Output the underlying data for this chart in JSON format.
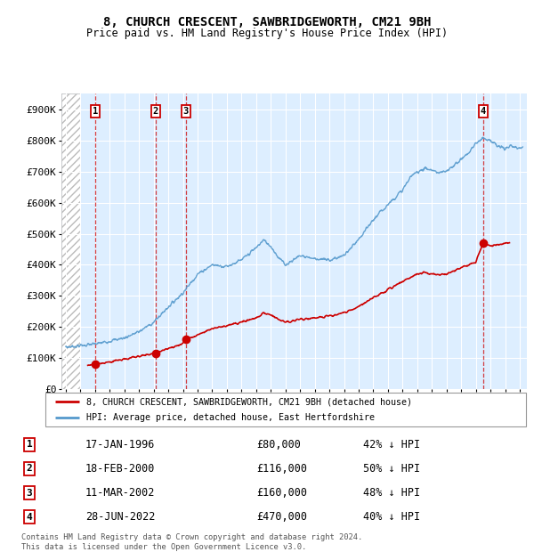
{
  "title": "8, CHURCH CRESCENT, SAWBRIDGEWORTH, CM21 9BH",
  "subtitle": "Price paid vs. HM Land Registry's House Price Index (HPI)",
  "transactions": [
    {
      "num": 1,
      "date_str": "17-JAN-1996",
      "year": 1996.04,
      "price": 80000,
      "label": "42% ↓ HPI"
    },
    {
      "num": 2,
      "date_str": "18-FEB-2000",
      "year": 2000.12,
      "price": 116000,
      "label": "50% ↓ HPI"
    },
    {
      "num": 3,
      "date_str": "11-MAR-2002",
      "year": 2002.19,
      "price": 160000,
      "label": "48% ↓ HPI"
    },
    {
      "num": 4,
      "date_str": "28-JUN-2022",
      "year": 2022.49,
      "price": 470000,
      "label": "40% ↓ HPI"
    }
  ],
  "hpi_color": "#5599cc",
  "price_color": "#cc0000",
  "vline_color": "#cc0000",
  "bg_color": "#ddeeff",
  "ylim": [
    0,
    950000
  ],
  "xlim_start": 1993.7,
  "xlim_end": 2025.5,
  "yticks": [
    0,
    100000,
    200000,
    300000,
    400000,
    500000,
    600000,
    700000,
    800000,
    900000
  ],
  "ytick_labels": [
    "£0",
    "£100K",
    "£200K",
    "£300K",
    "£400K",
    "£500K",
    "£600K",
    "£700K",
    "£800K",
    "£900K"
  ],
  "legend_label_price": "8, CHURCH CRESCENT, SAWBRIDGEWORTH, CM21 9BH (detached house)",
  "legend_label_hpi": "HPI: Average price, detached house, East Hertfordshire",
  "footer": "Contains HM Land Registry data © Crown copyright and database right 2024.\nThis data is licensed under the Open Government Licence v3.0.",
  "hpi_keypoints": [
    [
      1994.0,
      135000
    ],
    [
      1995.0,
      140000
    ],
    [
      1996.0,
      145000
    ],
    [
      1997.0,
      155000
    ],
    [
      1998.0,
      165000
    ],
    [
      1999.0,
      185000
    ],
    [
      2000.0,
      215000
    ],
    [
      2001.0,
      265000
    ],
    [
      2002.0,
      310000
    ],
    [
      2003.0,
      370000
    ],
    [
      2004.0,
      400000
    ],
    [
      2005.0,
      395000
    ],
    [
      2006.0,
      415000
    ],
    [
      2007.0,
      455000
    ],
    [
      2007.5,
      480000
    ],
    [
      2008.0,
      460000
    ],
    [
      2008.5,
      425000
    ],
    [
      2009.0,
      400000
    ],
    [
      2009.5,
      415000
    ],
    [
      2010.0,
      430000
    ],
    [
      2011.0,
      420000
    ],
    [
      2012.0,
      415000
    ],
    [
      2013.0,
      430000
    ],
    [
      2014.0,
      480000
    ],
    [
      2015.0,
      545000
    ],
    [
      2016.0,
      595000
    ],
    [
      2017.0,
      640000
    ],
    [
      2017.5,
      680000
    ],
    [
      2018.0,
      700000
    ],
    [
      2018.5,
      710000
    ],
    [
      2019.0,
      705000
    ],
    [
      2019.5,
      695000
    ],
    [
      2020.0,
      700000
    ],
    [
      2020.5,
      720000
    ],
    [
      2021.0,
      740000
    ],
    [
      2021.5,
      760000
    ],
    [
      2022.0,
      790000
    ],
    [
      2022.5,
      810000
    ],
    [
      2023.0,
      800000
    ],
    [
      2023.5,
      780000
    ],
    [
      2024.0,
      775000
    ],
    [
      2024.5,
      780000
    ],
    [
      2025.0,
      775000
    ]
  ],
  "price_keypoints": [
    [
      1995.5,
      78000
    ],
    [
      1996.04,
      80000
    ],
    [
      1997.0,
      88000
    ],
    [
      1998.0,
      96000
    ],
    [
      1999.0,
      106000
    ],
    [
      2000.0,
      115000
    ],
    [
      2000.12,
      116000
    ],
    [
      2001.0,
      130000
    ],
    [
      2002.0,
      148000
    ],
    [
      2002.19,
      160000
    ],
    [
      2003.0,
      175000
    ],
    [
      2004.0,
      195000
    ],
    [
      2005.0,
      205000
    ],
    [
      2006.0,
      215000
    ],
    [
      2007.0,
      230000
    ],
    [
      2007.5,
      245000
    ],
    [
      2008.0,
      240000
    ],
    [
      2008.5,
      225000
    ],
    [
      2009.0,
      215000
    ],
    [
      2009.5,
      220000
    ],
    [
      2010.0,
      225000
    ],
    [
      2011.0,
      230000
    ],
    [
      2012.0,
      235000
    ],
    [
      2013.0,
      245000
    ],
    [
      2014.0,
      265000
    ],
    [
      2015.0,
      295000
    ],
    [
      2016.0,
      320000
    ],
    [
      2017.0,
      345000
    ],
    [
      2017.5,
      360000
    ],
    [
      2018.0,
      370000
    ],
    [
      2018.5,
      375000
    ],
    [
      2019.0,
      370000
    ],
    [
      2019.5,
      368000
    ],
    [
      2020.0,
      370000
    ],
    [
      2020.5,
      380000
    ],
    [
      2021.0,
      390000
    ],
    [
      2021.5,
      400000
    ],
    [
      2022.0,
      408000
    ],
    [
      2022.49,
      470000
    ],
    [
      2022.6,
      468000
    ],
    [
      2023.0,
      460000
    ],
    [
      2023.5,
      465000
    ],
    [
      2024.0,
      470000
    ],
    [
      2024.3,
      468000
    ]
  ]
}
